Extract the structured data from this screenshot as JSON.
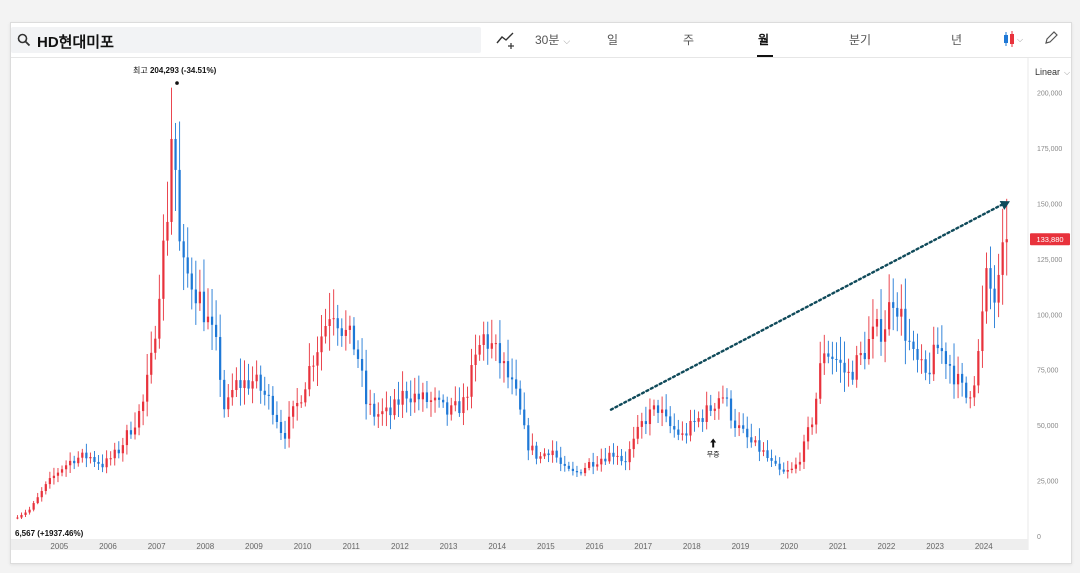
{
  "search": {
    "query": "HD현대미포"
  },
  "toolbar": {
    "interval": "30분",
    "tabs": [
      "일",
      "주",
      "월",
      "분기",
      "년"
    ],
    "active_tab": "월"
  },
  "scale": {
    "mode": "Linear"
  },
  "colors": {
    "up": "#e8323c",
    "down": "#1e78d6",
    "trend": "#0f4a5a",
    "price_tag": "#e8323c"
  },
  "annotations": {
    "high_prefix": "최고",
    "high_value": "204,293 (-34.51%)",
    "low_label": "6,567 (+1937.46%)",
    "split_label": "무증",
    "price_tag": "133,880"
  },
  "chart_data": {
    "type": "candlestick",
    "x_axis_labels": [
      "2005",
      "2006",
      "2007",
      "2008",
      "2009",
      "2010",
      "2011",
      "2012",
      "2013",
      "2014",
      "2015",
      "2016",
      "2017",
      "2018",
      "2019",
      "2020",
      "2021",
      "2022",
      "2023",
      "2024"
    ],
    "y_axis_labels": [
      "0",
      "25,000",
      "50,000",
      "75,000",
      "100,000",
      "125,000",
      "150,000",
      "175,000",
      "200,000"
    ],
    "ylim": [
      0,
      212000
    ],
    "xlim": [
      2004.5,
      2025.3
    ],
    "high": {
      "x": 2007.83,
      "value": 204293,
      "change_pct": -34.51
    },
    "low": {
      "x": 2004.6,
      "value": 6567,
      "change_pct": 1937.46
    },
    "split_marker": {
      "x": 2018.85,
      "label": "무증"
    },
    "last_price": 133880,
    "trendline": {
      "from": {
        "x": 2016.75,
        "y": 57000
      },
      "to": {
        "x": 2024.95,
        "y": 151000
      }
    },
    "anchors": [
      [
        2004.55,
        8000
      ],
      [
        2004.9,
        12000
      ],
      [
        2005.2,
        22000
      ],
      [
        2005.5,
        30000
      ],
      [
        2005.8,
        35000
      ],
      [
        2006.1,
        36000
      ],
      [
        2006.4,
        32000
      ],
      [
        2006.7,
        38000
      ],
      [
        2007.0,
        50000
      ],
      [
        2007.2,
        58000
      ],
      [
        2007.4,
        80000
      ],
      [
        2007.55,
        115000
      ],
      [
        2007.7,
        140000
      ],
      [
        2007.83,
        195000
      ],
      [
        2007.92,
        145000
      ],
      [
        2008.0,
        120000
      ],
      [
        2008.25,
        115000
      ],
      [
        2008.5,
        100000
      ],
      [
        2008.75,
        82000
      ],
      [
        2008.9,
        55000
      ],
      [
        2009.1,
        68000
      ],
      [
        2009.5,
        70000
      ],
      [
        2009.9,
        58000
      ],
      [
        2010.1,
        45000
      ],
      [
        2010.4,
        60000
      ],
      [
        2010.7,
        80000
      ],
      [
        2010.95,
        95000
      ],
      [
        2011.1,
        105000
      ],
      [
        2011.35,
        92000
      ],
      [
        2011.6,
        85000
      ],
      [
        2011.8,
        60000
      ],
      [
        2011.95,
        55000
      ],
      [
        2012.3,
        55000
      ],
      [
        2012.6,
        65000
      ],
      [
        2012.9,
        62000
      ],
      [
        2013.2,
        60000
      ],
      [
        2013.5,
        55000
      ],
      [
        2013.8,
        60000
      ],
      [
        2014.0,
        75000
      ],
      [
        2014.2,
        90000
      ],
      [
        2014.4,
        85000
      ],
      [
        2014.65,
        75000
      ],
      [
        2014.9,
        62000
      ],
      [
        2015.1,
        42000
      ],
      [
        2015.35,
        35000
      ],
      [
        2015.6,
        40000
      ],
      [
        2015.85,
        30000
      ],
      [
        2016.1,
        28000
      ],
      [
        2016.4,
        33000
      ],
      [
        2016.7,
        36000
      ],
      [
        2016.95,
        38000
      ],
      [
        2017.1,
        33000
      ],
      [
        2017.3,
        42000
      ],
      [
        2017.5,
        52000
      ],
      [
        2017.8,
        58000
      ],
      [
        2018.0,
        50000
      ],
      [
        2018.3,
        45000
      ],
      [
        2018.6,
        52000
      ],
      [
        2018.9,
        58000
      ],
      [
        2019.1,
        65000
      ],
      [
        2019.4,
        50000
      ],
      [
        2019.7,
        42000
      ],
      [
        2019.95,
        38000
      ],
      [
        2020.15,
        32000
      ],
      [
        2020.35,
        28000
      ],
      [
        2020.6,
        30000
      ],
      [
        2020.8,
        40000
      ],
      [
        2021.0,
        55000
      ],
      [
        2021.2,
        85000
      ],
      [
        2021.45,
        80000
      ],
      [
        2021.7,
        72000
      ],
      [
        2021.95,
        80000
      ],
      [
        2022.2,
        90000
      ],
      [
        2022.45,
        95000
      ],
      [
        2022.65,
        110000
      ],
      [
        2022.85,
        95000
      ],
      [
        2023.05,
        80000
      ],
      [
        2023.3,
        72000
      ],
      [
        2023.55,
        85000
      ],
      [
        2023.75,
        80000
      ],
      [
        2023.95,
        70000
      ],
      [
        2024.15,
        62000
      ],
      [
        2024.35,
        75000
      ],
      [
        2024.55,
        115000
      ],
      [
        2024.75,
        105000
      ],
      [
        2024.95,
        133880
      ]
    ]
  }
}
